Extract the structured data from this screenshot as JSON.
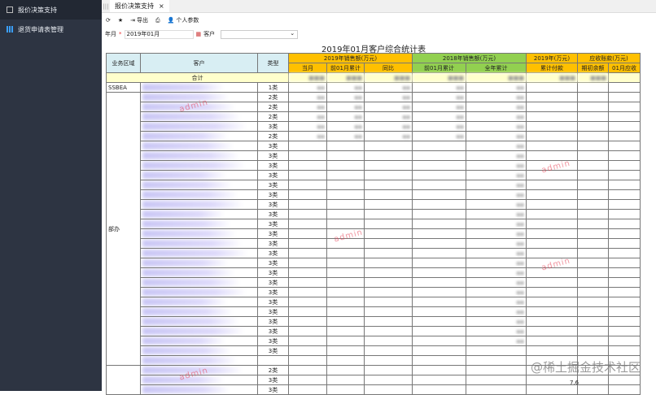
{
  "sidebar": {
    "items": [
      {
        "label": "报价决策支持",
        "icon": "report-icon"
      },
      {
        "label": "退货申请表管理",
        "icon": "bar-chart-icon"
      }
    ]
  },
  "tabs": [
    {
      "label": "报价决策支持",
      "close": "×"
    }
  ],
  "toolbar": {
    "refresh": "⟳",
    "favorite": "★",
    "export": "导出",
    "print": "⎙",
    "params": "个人参数"
  },
  "filter": {
    "month_label": "年月",
    "required_mark": "*",
    "month_value": "2019年01月",
    "customer_label": "客户",
    "customer_value": "",
    "dropdown": "⌄"
  },
  "report": {
    "title": "2019年01月客户综合统计表",
    "headers": {
      "region": "业务区域",
      "customer": "客户",
      "type": "类型",
      "g2019": "2019年销售额(万元)",
      "g2018": "2018年销售额(万元)",
      "g2019b": "2019年(万元)",
      "ar": "应收账款(万元)",
      "sub": [
        "当月",
        "前01月累计",
        "同比",
        "前01月累计",
        "全年累计",
        "累计付款",
        "期初余额",
        "01月应收"
      ]
    },
    "total_label": "合计",
    "regions": [
      "SSBEA",
      "部办"
    ],
    "types": [
      "1类",
      "2类",
      "2类",
      "2类",
      "3类",
      "2类",
      "3类",
      "3类",
      "3类",
      "3类",
      "3类",
      "3类",
      "3类",
      "3类",
      "3类",
      "3类",
      "3类",
      "3类",
      "3类",
      "3类",
      "3类",
      "3类",
      "3类",
      "3类",
      "3类",
      "3类",
      "3类",
      "3类",
      "",
      "2类",
      "3类",
      "3类"
    ],
    "visible_value": "7.6"
  },
  "watermark": "admin",
  "juejin": "@稀土掘金技术社区"
}
